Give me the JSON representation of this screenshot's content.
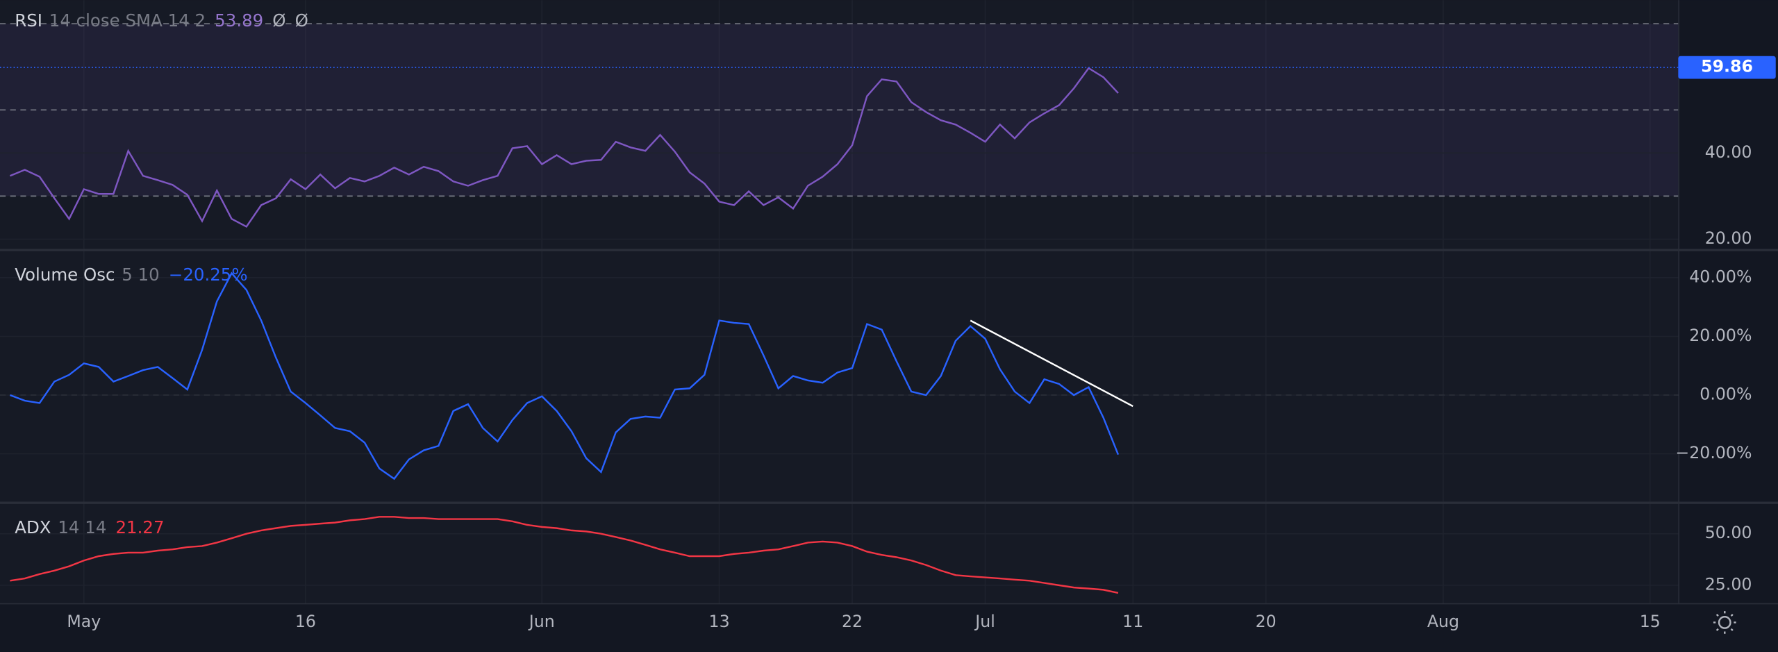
{
  "chart_data": [
    {
      "type": "line",
      "header": {
        "name": "RSI",
        "params": "14 close SMA 14 2",
        "values": [
          "53.89",
          "Ø",
          "Ø"
        ]
      },
      "series": [
        {
          "name": "RSI",
          "color": "#7e57c2",
          "values": [
            34.7,
            36.1,
            34.5,
            29.5,
            24.7,
            31.6,
            30.5,
            30.5,
            40.5,
            34.7,
            33.7,
            32.6,
            30.3,
            24.2,
            31.3,
            24.7,
            22.9,
            27.9,
            29.5,
            33.9,
            31.6,
            35.0,
            31.8,
            34.2,
            33.4,
            34.7,
            36.6,
            35.0,
            36.8,
            35.8,
            33.4,
            32.4,
            33.7,
            34.7,
            41.1,
            41.6,
            37.4,
            39.5,
            37.4,
            38.2,
            38.4,
            42.6,
            41.3,
            40.5,
            44.2,
            40.3,
            35.5,
            32.9,
            28.7,
            27.9,
            31.1,
            27.9,
            29.7,
            27.1,
            32.4,
            34.5,
            37.4,
            41.8,
            53.2,
            57.1,
            56.6,
            51.8,
            49.5,
            47.6,
            46.6,
            44.7,
            42.6,
            46.6,
            43.4,
            47.1,
            49.2,
            51.1,
            55.0,
            59.7,
            57.6,
            53.9,
            null,
            null,
            null,
            null,
            null,
            null,
            null,
            null,
            null,
            null,
            null,
            null,
            null,
            null,
            null,
            null,
            null,
            null,
            null,
            null,
            null,
            null,
            null,
            null,
            null,
            null,
            null,
            null,
            null,
            null,
            null,
            null,
            null,
            null,
            null,
            null,
            null
          ]
        }
      ],
      "ylim": [
        17.6,
        75.5
      ],
      "yticks": [
        {
          "value": 40,
          "label": "40.00"
        },
        {
          "value": 20,
          "label": "20.00"
        }
      ],
      "levels": [
        70,
        50,
        30
      ],
      "band_color": "#7e57c2",
      "marker": {
        "value": 59.86,
        "label": "59.86",
        "color": "#2962ff"
      },
      "grid": true
    },
    {
      "type": "line",
      "header": {
        "name": "Volume Osc",
        "params": "5 10",
        "values": [
          "−20.25%"
        ]
      },
      "series": [
        {
          "name": "Volume Osc",
          "color": "#2962ff",
          "values": [
            0,
            -1.9,
            -2.7,
            4.6,
            6.9,
            10.8,
            9.6,
            4.6,
            6.5,
            8.5,
            9.6,
            5.8,
            1.9,
            15.4,
            31.9,
            41.5,
            35.8,
            25.4,
            12.7,
            1.2,
            -2.7,
            -6.9,
            -11.2,
            -12.3,
            -16.2,
            -25.0,
            -28.5,
            -21.9,
            -18.8,
            -17.3,
            -5.4,
            -3.1,
            -11.2,
            -15.8,
            -8.5,
            -2.7,
            -0.4,
            -5.4,
            -12.3,
            -21.5,
            -26.2,
            -12.7,
            -8.1,
            -7.3,
            -7.7,
            1.9,
            2.3,
            6.9,
            25.4,
            24.6,
            24.2,
            13.5,
            2.3,
            6.5,
            5.0,
            4.2,
            7.7,
            9.2,
            24.2,
            22.3,
            11.5,
            1.2,
            0,
            6.5,
            18.5,
            23.5,
            19.2,
            8.8,
            1.2,
            -2.7,
            5.4,
            3.8,
            0,
            2.7,
            -7.7,
            -20.25,
            null,
            null,
            null,
            null,
            null,
            null,
            null,
            null,
            null,
            null,
            null,
            null,
            null,
            null,
            null,
            null,
            null,
            null,
            null,
            null,
            null,
            null,
            null,
            null,
            null,
            null,
            null,
            null,
            null,
            null,
            null,
            null,
            null,
            null,
            null,
            null,
            null
          ]
        }
      ],
      "ylim": [
        -36.5,
        49.2
      ],
      "yticks": [
        {
          "value": 40,
          "label": "40.00%"
        },
        {
          "value": 20,
          "label": "20.00%"
        },
        {
          "value": 0,
          "label": "0.00%"
        },
        {
          "value": -20,
          "label": "−20.00%"
        }
      ],
      "levels": [
        0
      ],
      "trendline": {
        "x": [
          65,
          76
        ],
        "y": [
          25.4,
          -3.8
        ],
        "color": "#ffffff"
      },
      "grid": true
    },
    {
      "type": "line",
      "header": {
        "name": "ADX",
        "params": "14 14",
        "values": [
          "21.27"
        ]
      },
      "categories": [
        null,
        null,
        null,
        null,
        null,
        "May",
        null,
        null,
        null,
        null,
        null,
        null,
        null,
        null,
        null,
        null,
        null,
        null,
        null,
        null,
        "16",
        null,
        null,
        null,
        null,
        null,
        null,
        null,
        null,
        null,
        null,
        null,
        null,
        null,
        null,
        null,
        "Jun",
        null,
        null,
        null,
        null,
        null,
        null,
        null,
        null,
        null,
        null,
        null,
        "13",
        null,
        null,
        null,
        null,
        null,
        null,
        null,
        null,
        "22",
        null,
        null,
        null,
        null,
        null,
        null,
        null,
        null,
        "Jul",
        null,
        null,
        null,
        null,
        null,
        null,
        null,
        null,
        null,
        "11",
        null,
        null,
        null,
        null,
        null,
        null,
        null,
        null,
        "20",
        null,
        null,
        null,
        null,
        null,
        null,
        null,
        null,
        null,
        null,
        null,
        "Aug",
        null,
        null,
        null,
        null,
        null,
        null,
        null,
        null,
        null,
        null,
        null,
        null,
        null,
        "15",
        null
      ],
      "series": [
        {
          "name": "ADX",
          "color": "#f23645",
          "values": [
            27.2,
            28.3,
            30.4,
            32.1,
            34.2,
            37.0,
            39.1,
            40.2,
            40.8,
            40.8,
            41.8,
            42.4,
            43.5,
            44.0,
            45.7,
            47.8,
            50.0,
            51.6,
            52.7,
            53.8,
            54.3,
            54.9,
            55.4,
            56.5,
            57.1,
            58.2,
            58.2,
            57.6,
            57.6,
            57.1,
            57.1,
            57.1,
            57.1,
            57.1,
            56.0,
            54.3,
            53.3,
            52.7,
            51.6,
            51.1,
            50.0,
            48.4,
            46.7,
            44.6,
            42.4,
            40.8,
            39.1,
            39.1,
            39.1,
            40.2,
            40.8,
            41.8,
            42.4,
            44.0,
            45.7,
            46.2,
            45.7,
            44.0,
            41.3,
            39.7,
            38.6,
            37.0,
            34.8,
            32.1,
            29.9,
            29.3,
            28.8,
            28.3,
            27.7,
            27.2,
            26.1,
            25.0,
            23.9,
            23.4,
            22.8,
            21.27,
            null,
            null,
            null,
            null,
            null,
            null,
            null,
            null,
            null,
            null,
            null,
            null,
            null,
            null,
            null,
            null,
            null,
            null,
            null,
            null,
            null,
            null,
            null,
            null,
            null,
            null,
            null,
            null,
            null,
            null,
            null,
            null,
            null,
            null,
            null,
            null,
            null
          ]
        }
      ],
      "ylim": [
        16.3,
        64.7
      ],
      "yticks": [
        {
          "value": 50,
          "label": "50.00"
        },
        {
          "value": 25,
          "label": "25.00"
        }
      ],
      "grid": true
    }
  ]
}
